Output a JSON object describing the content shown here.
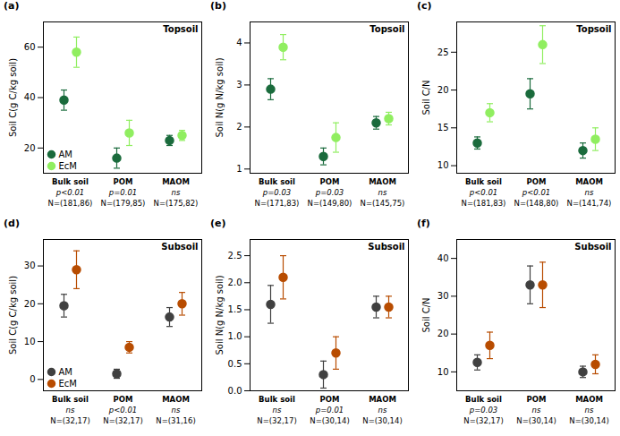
{
  "chart_data": [
    {
      "type": "scatter",
      "title": "(a)",
      "annotations": [
        "Topsoil"
      ],
      "ylabel": "Soil C(g C/kg soil)",
      "ylim": [
        10,
        70
      ],
      "yticks": [
        20,
        40,
        60
      ],
      "grid": false,
      "legend": "lower left",
      "categories": [
        "Bulk soil",
        "POM",
        "MAOM"
      ],
      "stats": [
        "p<0.01",
        "p=0.01",
        "ns"
      ],
      "n_labels": [
        "N=(181,86)",
        "N=(179,85)",
        "N=(175,82)"
      ],
      "series": [
        {
          "name": "AM",
          "color": "#1a6b3c",
          "values": [
            39,
            16,
            23
          ],
          "errors": [
            4,
            4,
            2
          ]
        },
        {
          "name": "EcM",
          "color": "#90ee60",
          "values": [
            58,
            26,
            25
          ],
          "errors": [
            6,
            5,
            2
          ]
        }
      ]
    },
    {
      "type": "scatter",
      "title": "(b)",
      "annotations": [
        "Topsoil"
      ],
      "ylabel": "Soil N(g N/kg soil)",
      "ylim": [
        0.9,
        4.5
      ],
      "yticks": [
        1,
        2,
        3,
        4
      ],
      "grid": false,
      "legend": false,
      "categories": [
        "Bulk soil",
        "POM",
        "MAOM"
      ],
      "stats": [
        "p=0.03",
        "p=0.03",
        "ns"
      ],
      "n_labels": [
        "N=(171,83)",
        "N=(149,80)",
        "N=(145,75)"
      ],
      "series": [
        {
          "name": "AM",
          "color": "#1a6b3c",
          "values": [
            2.9,
            1.3,
            2.1
          ],
          "errors": [
            0.25,
            0.2,
            0.15
          ]
        },
        {
          "name": "EcM",
          "color": "#90ee60",
          "values": [
            3.9,
            1.75,
            2.2
          ],
          "errors": [
            0.3,
            0.35,
            0.15
          ]
        }
      ]
    },
    {
      "type": "scatter",
      "title": "(c)",
      "annotations": [
        "Topsoil"
      ],
      "ylabel": "Soil C/N",
      "ylim": [
        9,
        29
      ],
      "yticks": [
        10,
        15,
        20,
        25
      ],
      "grid": false,
      "legend": false,
      "categories": [
        "Bulk soil",
        "POM",
        "MAOM"
      ],
      "stats": [
        "p<0.01",
        "p<0.01",
        "ns"
      ],
      "n_labels": [
        "N=(181,83)",
        "N=(148,80)",
        "N=(141,74)"
      ],
      "series": [
        {
          "name": "AM",
          "color": "#1a6b3c",
          "values": [
            13,
            19.5,
            12
          ],
          "errors": [
            0.8,
            2.0,
            1.0
          ]
        },
        {
          "name": "EcM",
          "color": "#90ee60",
          "values": [
            17,
            26,
            13.5
          ],
          "errors": [
            1.2,
            2.5,
            1.5
          ]
        }
      ]
    },
    {
      "type": "scatter",
      "title": "(d)",
      "annotations": [
        "Subsoil"
      ],
      "ylabel": "Soil C(g C/kg soil)",
      "ylim": [
        -3,
        37
      ],
      "yticks": [
        0,
        10,
        20,
        30
      ],
      "grid": false,
      "legend": "lower left",
      "categories": [
        "Bulk soil",
        "POM",
        "MAOM"
      ],
      "stats": [
        "ns",
        "p<0.01",
        "ns"
      ],
      "n_labels": [
        "N=(32,17)",
        "N=(32,17)",
        "N=(31,16)"
      ],
      "series": [
        {
          "name": "AM",
          "color": "#404040",
          "values": [
            19.5,
            1.5,
            16.5
          ],
          "errors": [
            3.0,
            1.2,
            2.5
          ]
        },
        {
          "name": "EcM",
          "color": "#b84c00",
          "values": [
            29,
            8.5,
            20
          ],
          "errors": [
            5.0,
            1.5,
            3.0
          ]
        }
      ]
    },
    {
      "type": "scatter",
      "title": "(e)",
      "annotations": [
        "Subsoil"
      ],
      "ylabel": "Soil N(g N/kg soil)",
      "ylim": [
        0.0,
        2.8
      ],
      "yticks": [
        {
          "value": 0,
          "label": "0.0"
        },
        0.5,
        {
          "value": 1,
          "label": "1.0"
        },
        1.5,
        {
          "value": 2,
          "label": "2.0"
        },
        2.5
      ],
      "grid": false,
      "legend": false,
      "categories": [
        "Bulk soil",
        "POM",
        "MAOM"
      ],
      "stats": [
        "ns",
        "p=0.01",
        "ns"
      ],
      "n_labels": [
        "N=(32,17)",
        "N=(30,14)",
        "N=(30,14)"
      ],
      "series": [
        {
          "name": "AM",
          "color": "#404040",
          "values": [
            1.6,
            0.3,
            1.55
          ],
          "errors": [
            0.35,
            0.25,
            0.2
          ]
        },
        {
          "name": "EcM",
          "color": "#b84c00",
          "values": [
            2.1,
            0.7,
            1.55
          ],
          "errors": [
            0.4,
            0.3,
            0.2
          ]
        }
      ]
    },
    {
      "type": "scatter",
      "title": "(f)",
      "annotations": [
        "Subsoil"
      ],
      "ylabel": "Soil C/N",
      "ylim": [
        5,
        45
      ],
      "yticks": [
        10,
        20,
        30,
        40
      ],
      "grid": false,
      "legend": false,
      "categories": [
        "Bulk soil",
        "POM",
        "MAOM"
      ],
      "stats": [
        "p=0.03",
        "ns",
        "ns"
      ],
      "n_labels": [
        "N=(32,17)",
        "N=(30,14)",
        "N=(30,14)"
      ],
      "series": [
        {
          "name": "AM",
          "color": "#404040",
          "values": [
            12.5,
            33,
            10
          ],
          "errors": [
            2.0,
            5.0,
            1.5
          ]
        },
        {
          "name": "EcM",
          "color": "#b84c00",
          "values": [
            17,
            33,
            12
          ],
          "errors": [
            3.5,
            6.0,
            2.5
          ]
        }
      ]
    }
  ]
}
